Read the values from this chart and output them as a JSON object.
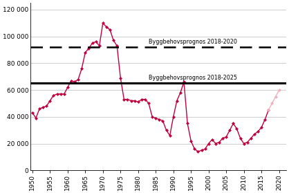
{
  "title": "",
  "ylabel": "",
  "xlabel": "",
  "ylim": [
    0,
    125000
  ],
  "yticks": [
    0,
    20000,
    40000,
    60000,
    80000,
    100000,
    120000
  ],
  "ytick_labels": [
    "0",
    "20 000",
    "40 000",
    "60 000",
    "80 000",
    "100 000",
    "120 000"
  ],
  "xticks": [
    1950,
    1955,
    1960,
    1965,
    1970,
    1975,
    1980,
    1985,
    1990,
    1995,
    2000,
    2005,
    2010,
    2015,
    2020
  ],
  "hline_dashed_y": 92000,
  "hline_dashed_label": "Byggbehovsprognos 2018-2020",
  "hline_solid_y": 65000,
  "hline_solid_label": "Byggbehovsprognos 2018-2025",
  "line_color": "#c0003c",
  "forecast_color": "#f2b0be",
  "years": [
    1950,
    1951,
    1952,
    1953,
    1954,
    1955,
    1956,
    1957,
    1958,
    1959,
    1960,
    1961,
    1962,
    1963,
    1964,
    1965,
    1966,
    1967,
    1968,
    1969,
    1970,
    1971,
    1972,
    1973,
    1974,
    1975,
    1976,
    1977,
    1978,
    1979,
    1980,
    1981,
    1982,
    1983,
    1984,
    1985,
    1986,
    1987,
    1988,
    1989,
    1990,
    1991,
    1992,
    1993,
    1994,
    1995,
    1996,
    1997,
    1998,
    1999,
    2000,
    2001,
    2002,
    2003,
    2004,
    2005,
    2006,
    2007,
    2008,
    2009,
    2010,
    2011,
    2012,
    2013,
    2014,
    2015,
    2016,
    2017,
    2018,
    2019,
    2020
  ],
  "values": [
    43000,
    39000,
    46000,
    47000,
    48000,
    52000,
    56000,
    57000,
    57000,
    57000,
    62000,
    67000,
    66000,
    68000,
    76000,
    88000,
    91000,
    95000,
    96000,
    93000,
    110000,
    107000,
    105000,
    97000,
    93000,
    69000,
    53000,
    53000,
    52000,
    52000,
    51000,
    53000,
    53000,
    50000,
    40000,
    39000,
    38000,
    37000,
    30000,
    26000,
    40000,
    52000,
    58000,
    66000,
    35000,
    22000,
    16000,
    14000,
    15000,
    16000,
    20000,
    23000,
    20000,
    21000,
    24000,
    25000,
    30000,
    35000,
    31000,
    24000,
    20000,
    21000,
    24000,
    27000,
    29000,
    32000,
    38000,
    45000,
    50000,
    55000,
    60000
  ],
  "forecast_start_year": 2018,
  "background_color": "#ffffff",
  "grid_color": "#bbbbbb"
}
